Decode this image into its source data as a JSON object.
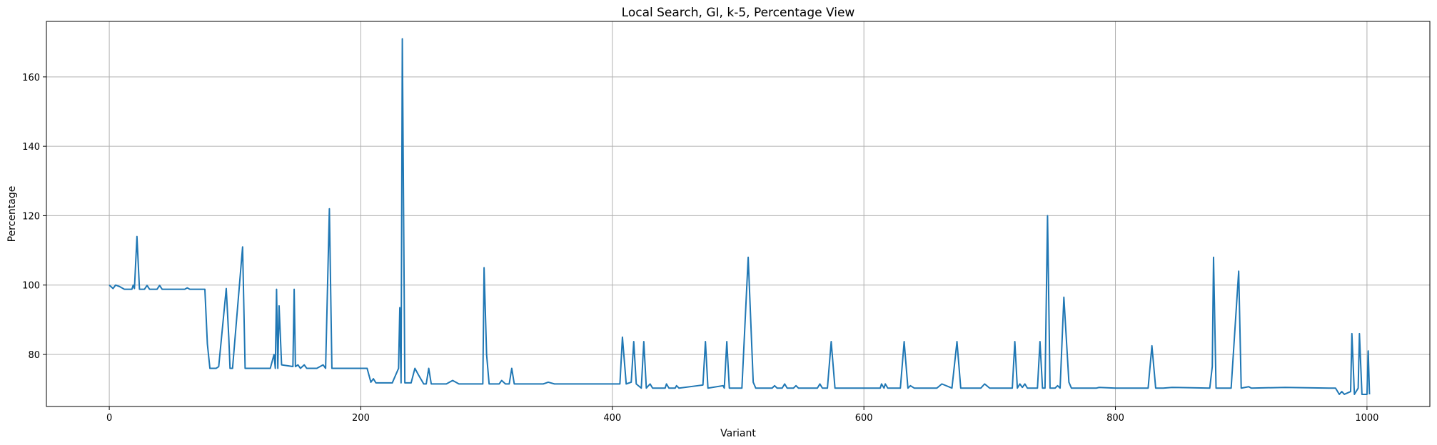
{
  "chart_data": {
    "type": "line",
    "title": "Local Search, GI, k-5, Percentage View",
    "xlabel": "Variant",
    "ylabel": "Percentage",
    "xlim": [
      -50,
      1050
    ],
    "ylim": [
      65,
      176
    ],
    "xticks": [
      0,
      200,
      400,
      600,
      800,
      1000
    ],
    "yticks": [
      80,
      100,
      120,
      140,
      160
    ],
    "grid": true,
    "legend": "none",
    "series": [
      {
        "color": "#1f77b4",
        "points": [
          [
            0,
            100
          ],
          [
            3,
            99
          ],
          [
            5,
            100
          ],
          [
            8,
            99.6
          ],
          [
            12,
            98.8
          ],
          [
            18,
            98.8
          ],
          [
            19,
            100
          ],
          [
            20,
            99
          ],
          [
            22,
            114
          ],
          [
            24,
            98.8
          ],
          [
            28,
            98.8
          ],
          [
            30,
            99.9
          ],
          [
            32,
            98.8
          ],
          [
            38,
            98.8
          ],
          [
            40,
            99.9
          ],
          [
            42,
            98.8
          ],
          [
            60,
            98.8
          ],
          [
            62,
            99.2
          ],
          [
            64,
            98.8
          ],
          [
            76,
            98.8
          ],
          [
            78,
            83
          ],
          [
            80,
            76
          ],
          [
            85,
            76
          ],
          [
            87,
            76.5
          ],
          [
            93,
            99
          ],
          [
            95,
            85
          ],
          [
            96,
            76
          ],
          [
            98,
            76
          ],
          [
            106,
            111
          ],
          [
            108,
            76
          ],
          [
            125,
            76
          ],
          [
            128,
            76
          ],
          [
            131,
            80
          ],
          [
            132,
            76
          ],
          [
            133,
            98.8
          ],
          [
            134,
            76
          ],
          [
            135,
            94
          ],
          [
            137,
            77
          ],
          [
            146,
            76.5
          ],
          [
            147,
            98.8
          ],
          [
            148,
            76.5
          ],
          [
            150,
            77
          ],
          [
            152,
            76
          ],
          [
            155,
            77
          ],
          [
            157,
            76
          ],
          [
            165,
            76
          ],
          [
            170,
            77
          ],
          [
            172,
            76
          ],
          [
            175,
            122
          ],
          [
            177,
            76
          ],
          [
            200,
            76
          ],
          [
            205,
            76
          ],
          [
            208,
            72
          ],
          [
            210,
            73
          ],
          [
            212,
            71.8
          ],
          [
            225,
            71.8
          ],
          [
            230,
            76
          ],
          [
            231,
            93.5
          ],
          [
            232,
            71.8
          ],
          [
            233,
            171
          ],
          [
            235,
            71.8
          ],
          [
            240,
            71.8
          ],
          [
            243,
            76
          ],
          [
            246,
            74
          ],
          [
            250,
            71.5
          ],
          [
            252,
            71.5
          ],
          [
            254,
            76
          ],
          [
            256,
            71.5
          ],
          [
            268,
            71.5
          ],
          [
            273,
            72.5
          ],
          [
            278,
            71.5
          ],
          [
            292,
            71.5
          ],
          [
            297,
            71.5
          ],
          [
            298,
            105
          ],
          [
            300,
            80
          ],
          [
            302,
            71.5
          ],
          [
            310,
            71.5
          ],
          [
            312,
            72.5
          ],
          [
            315,
            71.5
          ],
          [
            318,
            71.5
          ],
          [
            320,
            76
          ],
          [
            322,
            71.5
          ],
          [
            330,
            71.5
          ],
          [
            345,
            71.5
          ],
          [
            349,
            72
          ],
          [
            354,
            71.5
          ],
          [
            400,
            71.5
          ],
          [
            406,
            71.5
          ],
          [
            408,
            85
          ],
          [
            411,
            71.5
          ],
          [
            415,
            72
          ],
          [
            417,
            83.7
          ],
          [
            419,
            71.5
          ],
          [
            423,
            70.3
          ],
          [
            425,
            83.7
          ],
          [
            427,
            70.3
          ],
          [
            430,
            71.5
          ],
          [
            432,
            70.3
          ],
          [
            442,
            70.3
          ],
          [
            443,
            71.5
          ],
          [
            445,
            70.3
          ],
          [
            450,
            70.3
          ],
          [
            451,
            71
          ],
          [
            453,
            70.3
          ],
          [
            468,
            71
          ],
          [
            472,
            71.2
          ],
          [
            474,
            83.7
          ],
          [
            476,
            70.3
          ],
          [
            488,
            71
          ],
          [
            489,
            70.3
          ],
          [
            491,
            83.7
          ],
          [
            493,
            70.3
          ],
          [
            503,
            70.3
          ],
          [
            508,
            108
          ],
          [
            512,
            72
          ],
          [
            514,
            70.3
          ],
          [
            527,
            70.3
          ],
          [
            529,
            71
          ],
          [
            531,
            70.3
          ],
          [
            535,
            70.3
          ],
          [
            537,
            71.5
          ],
          [
            539,
            70.3
          ],
          [
            544,
            70.3
          ],
          [
            546,
            71
          ],
          [
            548,
            70.3
          ],
          [
            563,
            70.3
          ],
          [
            565,
            71.5
          ],
          [
            567,
            70.3
          ],
          [
            571,
            70.3
          ],
          [
            574,
            83.7
          ],
          [
            577,
            70.3
          ],
          [
            613,
            70.3
          ],
          [
            614,
            71.5
          ],
          [
            616,
            70.3
          ],
          [
            617,
            71.5
          ],
          [
            619,
            70.3
          ],
          [
            629,
            70.3
          ],
          [
            632,
            83.7
          ],
          [
            635,
            70.3
          ],
          [
            637,
            71
          ],
          [
            640,
            70.3
          ],
          [
            658,
            70.3
          ],
          [
            662,
            71.5
          ],
          [
            670,
            70.3
          ],
          [
            674,
            83.7
          ],
          [
            677,
            70.3
          ],
          [
            693,
            70.3
          ],
          [
            696,
            71.5
          ],
          [
            700,
            70.3
          ],
          [
            718,
            70.3
          ],
          [
            720,
            83.7
          ],
          [
            722,
            70.3
          ],
          [
            724,
            71.5
          ],
          [
            726,
            70.5
          ],
          [
            728,
            71.5
          ],
          [
            730,
            70.3
          ],
          [
            738,
            70.3
          ],
          [
            740,
            83.7
          ],
          [
            742,
            70.3
          ],
          [
            744,
            70.3
          ],
          [
            746,
            120
          ],
          [
            748,
            70.3
          ],
          [
            752,
            70.3
          ],
          [
            754,
            71
          ],
          [
            756,
            70.3
          ],
          [
            759,
            96.5
          ],
          [
            763,
            72
          ],
          [
            765,
            70.3
          ],
          [
            785,
            70.3
          ],
          [
            787,
            70.5
          ],
          [
            800,
            70.3
          ],
          [
            826,
            70.3
          ],
          [
            829,
            82.5
          ],
          [
            832,
            70.3
          ],
          [
            838,
            70.3
          ],
          [
            845,
            70.5
          ],
          [
            875,
            70.3
          ],
          [
            877,
            76.5
          ],
          [
            878,
            108
          ],
          [
            880,
            70.3
          ],
          [
            892,
            70.3
          ],
          [
            898,
            104
          ],
          [
            900,
            70.3
          ],
          [
            906,
            70.7
          ],
          [
            908,
            70.3
          ],
          [
            935,
            70.5
          ],
          [
            970,
            70.3
          ],
          [
            975,
            70.3
          ],
          [
            978,
            68.5
          ],
          [
            980,
            69.3
          ],
          [
            982,
            68.5
          ],
          [
            987,
            69.3
          ],
          [
            988,
            86
          ],
          [
            990,
            68.5
          ],
          [
            993,
            70.3
          ],
          [
            994,
            86
          ],
          [
            996,
            68.5
          ],
          [
            1000,
            68.5
          ],
          [
            1001,
            81
          ],
          [
            1002,
            68.5
          ]
        ]
      }
    ]
  }
}
